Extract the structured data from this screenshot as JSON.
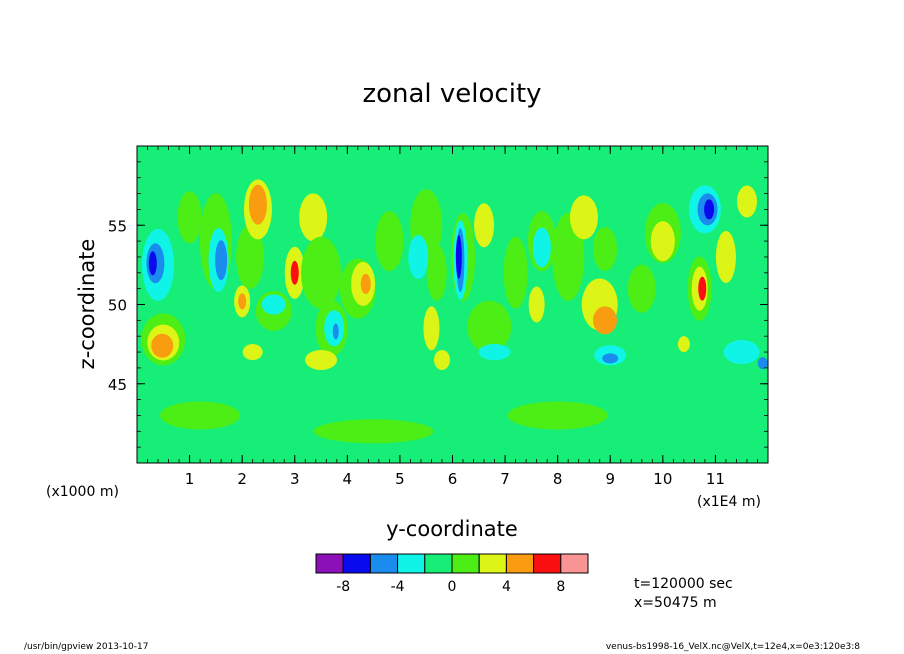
{
  "chart_data": {
    "type": "heatmap",
    "title": "zonal velocity",
    "xlabel": "y-coordinate",
    "ylabel": "z-coordinate",
    "x_unit_note": "(x1E4 m)",
    "y_unit_note": "(x1000 m)",
    "xlim": [
      0,
      12
    ],
    "ylim": [
      40,
      60
    ],
    "x_ticks": [
      1,
      2,
      3,
      4,
      5,
      6,
      7,
      8,
      9,
      10,
      11
    ],
    "y_ticks": [
      45,
      50,
      55
    ],
    "colorbar": {
      "levels": [
        -10,
        -8,
        -6,
        -4,
        -2,
        0,
        2,
        4,
        6,
        8,
        10
      ],
      "tick_labels": [
        "-8",
        "-4",
        "0",
        "4",
        "8"
      ],
      "tick_values": [
        -8,
        -4,
        0,
        4,
        8
      ],
      "colors": [
        "#8c10b8",
        "#0a0aee",
        "#1a8cee",
        "#10f4e8",
        "#16ee78",
        "#4cee16",
        "#dcf416",
        "#fa9c10",
        "#fa1010",
        "#fa9494"
      ]
    },
    "grid": false,
    "legend": "colorbar-below"
  },
  "notes": {
    "time": "t=120000 sec",
    "x_pos": "x=50475 m"
  },
  "footer": {
    "left": "/usr/bin/gpview   2013-10-17",
    "right": "venus-bs1998-16_VelX.nc@VelX,t=12e4,x=0e3:120e3:8"
  }
}
